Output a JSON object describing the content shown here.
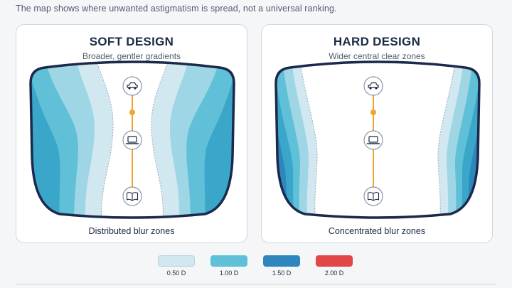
{
  "header": {
    "subtitle": "The map shows where unwanted astigmatism is spread, not a universal ranking."
  },
  "panels": [
    {
      "title": "SOFT DESIGN",
      "tagline": "Broader, gentler gradients",
      "caption": "Distributed blur zones"
    },
    {
      "title": "HARD DESIGN",
      "tagline": "Wider central clear zones",
      "caption": "Concentrated blur zones"
    }
  ],
  "icons": [
    "car-icon",
    "laptop-icon",
    "book-icon"
  ],
  "legend": [
    {
      "label": "0.50 D",
      "color": "#d2e8f1"
    },
    {
      "label": "1.00 D",
      "color": "#5fc0d8"
    },
    {
      "label": "1.50 D",
      "color": "#2f86bc"
    },
    {
      "label": "2.00 D",
      "color": "#e04848"
    }
  ],
  "colors": {
    "frame": "#1b2a4a",
    "axis": "#f0a431",
    "zone_050": "#d2e8f1",
    "zone_075": "#9fd6e5",
    "zone_100": "#5fc0d8",
    "zone_125": "#3aa6c9",
    "zone_150": "#2f86bc",
    "zone_175": "#246aa3",
    "zone_200": "#e04848"
  }
}
